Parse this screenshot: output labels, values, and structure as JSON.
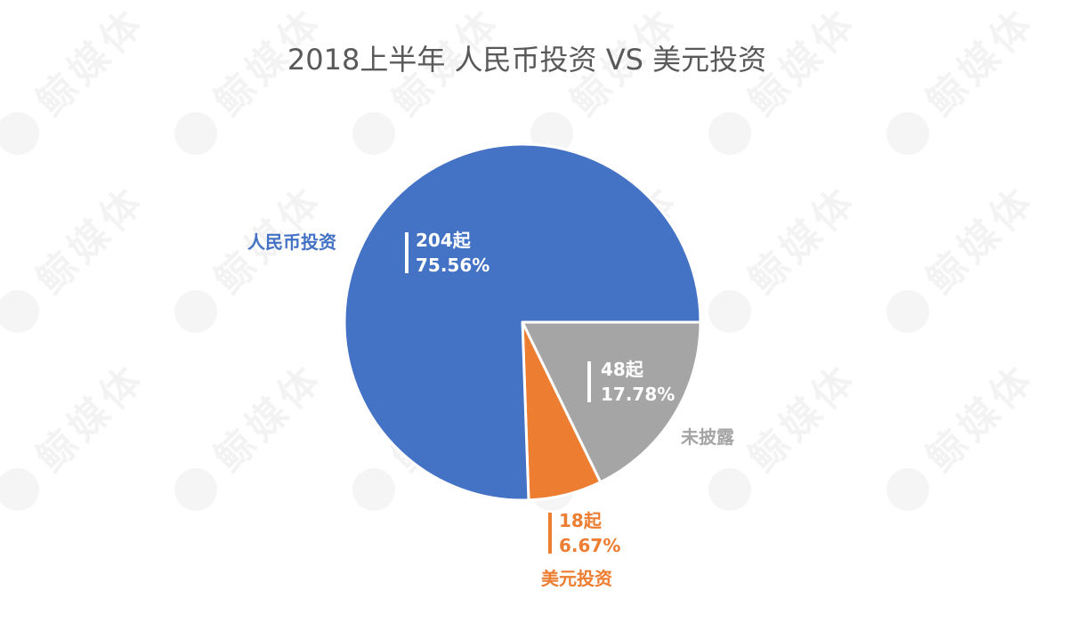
{
  "title": "2018上半年 人民币投资 VS 美元投资",
  "watermark": "鲸媒体",
  "colors": {
    "rmb": "#4472C4",
    "usd": "#ED7D31",
    "undisclosed": "#A5A5A5",
    "title": "#595959"
  },
  "chart_data": {
    "type": "pie",
    "title": "2018上半年 人民币投资 VS 美元投资",
    "start_angle_deg": 90,
    "direction": "clockwise",
    "legend": "none",
    "series": [
      {
        "name": "2018上半年",
        "slices": [
          {
            "key": "undisclosed",
            "name": "未披露",
            "value": 48,
            "count_label": "48起",
            "percent_label": "17.78%"
          },
          {
            "key": "usd",
            "name": "美元投资",
            "value": 18,
            "count_label": "18起",
            "percent_label": "6.67%"
          },
          {
            "key": "rmb",
            "name": "人民币投资",
            "value": 204,
            "count_label": "204起",
            "percent_label": "75.56%"
          }
        ]
      }
    ]
  }
}
